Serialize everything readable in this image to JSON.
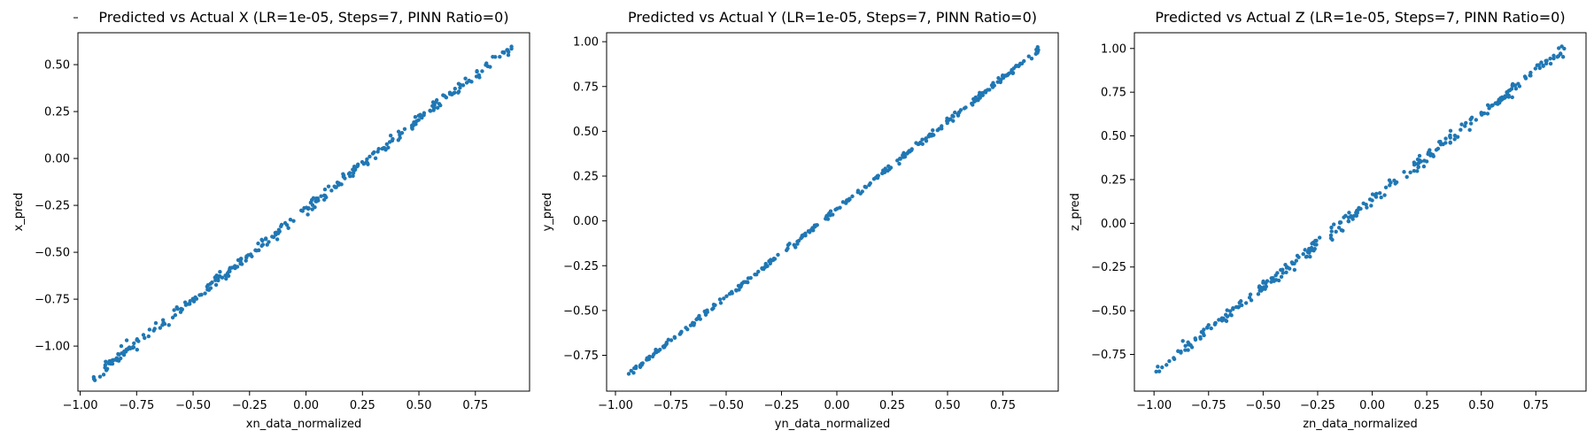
{
  "figure": {
    "background": "#ffffff",
    "marker_color": "#1f77b4"
  },
  "chart_data": [
    {
      "type": "scatter",
      "title": "Predicted vs Actual X (LR=1e-05, Steps=7, PINN Ratio=0)",
      "xlabel": "xn_data_normalized",
      "ylabel": "x_pred",
      "xlim": [
        -1.01,
        0.99
      ],
      "ylim": [
        -1.24,
        0.67
      ],
      "xticks": [
        -1.0,
        -0.75,
        -0.5,
        -0.25,
        0.0,
        0.25,
        0.5,
        0.75
      ],
      "yticks": [
        -1.0,
        -0.75,
        -0.5,
        -0.25,
        0.0,
        0.25,
        0.5,
        0.75
      ],
      "xtick_labels": [
        "−1.00",
        "−0.75",
        "−0.50",
        "−0.25",
        "0.00",
        "0.25",
        "0.50",
        "0.75"
      ],
      "ytick_labels": [
        "−1.00",
        "−0.75",
        "−0.50",
        "−0.25",
        "0.00",
        "0.25",
        "0.50"
      ],
      "fit": {
        "slope": 0.952,
        "intercept": -0.27,
        "spread": 0.016,
        "x_range": [
          -0.94,
          0.91
        ],
        "n": 300,
        "seed": 11
      },
      "series": [
        {
          "color": "#1f77b4"
        }
      ]
    },
    {
      "type": "scatter",
      "title": "Predicted vs Actual Y (LR=1e-05, Steps=7, PINN Ratio=0)",
      "xlabel": "yn_data_normalized",
      "ylabel": "y_pred",
      "xlim": [
        -1.04,
        1.0
      ],
      "ylim": [
        -0.95,
        1.05
      ],
      "xticks": [
        -1.0,
        -0.75,
        -0.5,
        -0.25,
        0.0,
        0.25,
        0.5,
        0.75
      ],
      "yticks": [
        -0.75,
        -0.5,
        -0.25,
        0.0,
        0.25,
        0.5,
        0.75,
        1.0
      ],
      "xtick_labels": [
        "−1.00",
        "−0.75",
        "−0.50",
        "−0.25",
        "0.00",
        "0.25",
        "0.50",
        "0.75"
      ],
      "ytick_labels": [
        "−0.75",
        "−0.50",
        "−0.25",
        "0.00",
        "0.25",
        "0.50",
        "0.75",
        "1.00"
      ],
      "fit": {
        "slope": 0.977,
        "intercept": 0.065,
        "spread": 0.008,
        "x_range": [
          -0.94,
          0.91
        ],
        "n": 300,
        "seed": 23
      },
      "series": [
        {
          "color": "#1f77b4"
        }
      ]
    },
    {
      "type": "scatter",
      "title": "Predicted vs Actual Z (LR=1e-05, Steps=7, PINN Ratio=0)",
      "xlabel": "zn_data_normalized",
      "ylabel": "z_pred",
      "xlim": [
        -1.09,
        0.98
      ],
      "ylim": [
        -0.96,
        1.09
      ],
      "xticks": [
        -1.0,
        -0.75,
        -0.5,
        -0.25,
        0.0,
        0.25,
        0.5,
        0.75
      ],
      "yticks": [
        -0.75,
        -0.5,
        -0.25,
        0.0,
        0.25,
        0.5,
        0.75,
        1.0
      ],
      "xtick_labels": [
        "−1.00",
        "−0.75",
        "−0.50",
        "−0.25",
        "0.00",
        "0.25",
        "0.50",
        "0.75"
      ],
      "ytick_labels": [
        "−0.75",
        "−0.50",
        "−0.25",
        "0.00",
        "0.25",
        "0.50",
        "0.75",
        "1.00"
      ],
      "fit": {
        "slope": 0.988,
        "intercept": 0.13,
        "spread": 0.018,
        "x_range": [
          -0.99,
          0.88
        ],
        "n": 300,
        "seed": 37
      },
      "series": [
        {
          "color": "#1f77b4"
        }
      ]
    }
  ]
}
